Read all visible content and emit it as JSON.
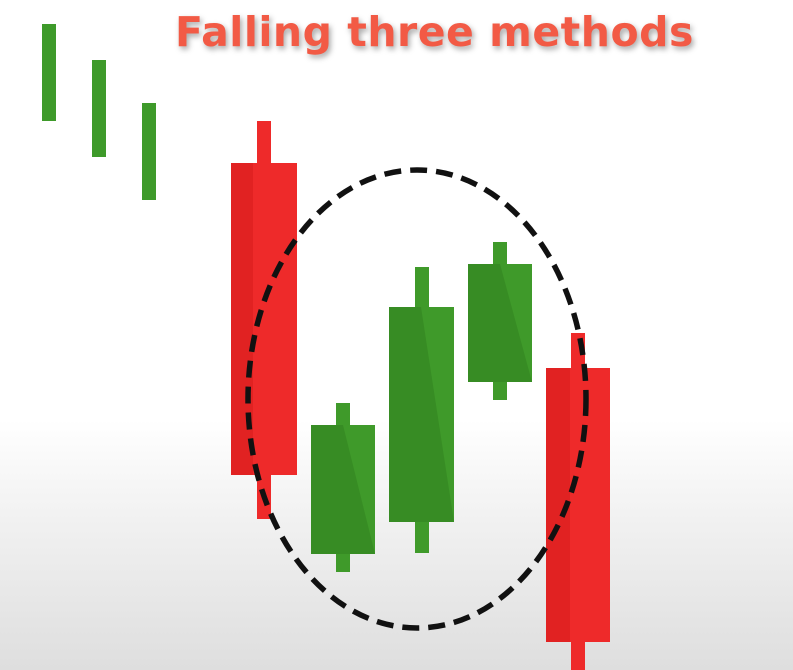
{
  "title": "Falling three methods",
  "colors": {
    "title": "#f25a45",
    "bearish": "#ee2a2a",
    "bearish_shade": "#c81414",
    "bullish": "#3f9a2a",
    "bullish_shade": "#2f7d1d",
    "trend_bars": "#3e9a2a",
    "highlight_ring": "#111111"
  },
  "chart_data": {
    "type": "candlestick",
    "pattern": "Falling three methods",
    "candles": [
      {
        "role": "prior-trend",
        "direction": "down",
        "open": 100,
        "high": 100,
        "low": 100,
        "close": 100
      },
      {
        "role": "first-long-bearish",
        "direction": "down",
        "open": 94,
        "high": 100,
        "low": 37,
        "close": 44
      },
      {
        "role": "small-bullish-1",
        "direction": "up",
        "open": 24,
        "high": 48,
        "low": 21,
        "close": 41
      },
      {
        "role": "small-bullish-2",
        "direction": "up",
        "open": 30,
        "high": 66,
        "low": 26,
        "close": 60
      },
      {
        "role": "small-bullish-3",
        "direction": "up",
        "open": 53,
        "high": 70,
        "low": 49,
        "close": 64
      },
      {
        "role": "final-long-bearish",
        "direction": "down",
        "open": 53,
        "high": 57,
        "low": 0,
        "close": 4
      }
    ],
    "highlight": "dashed circle around the three small bullish candles"
  }
}
